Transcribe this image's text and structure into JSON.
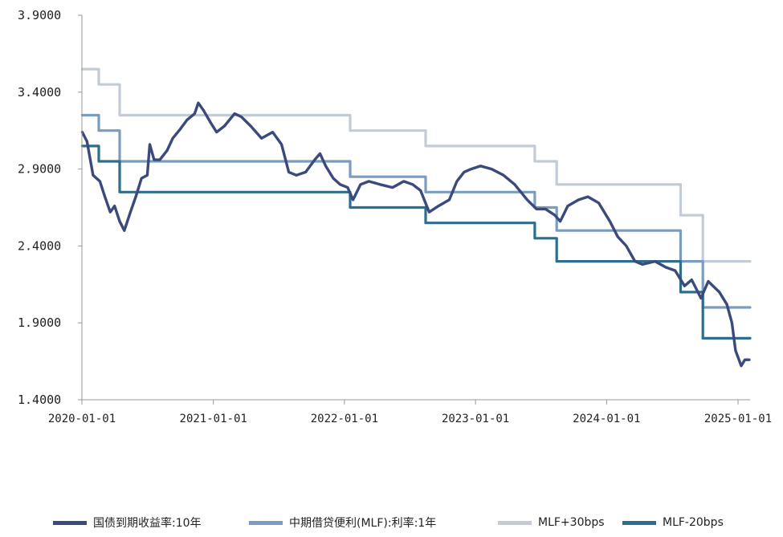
{
  "chart_data": {
    "type": "line",
    "title": "",
    "xlabel": "",
    "ylabel": "",
    "ylim": [
      1.4,
      3.9
    ],
    "yticks": [
      "3.9000",
      "3.4000",
      "2.9000",
      "2.4000",
      "1.9000",
      "1.4000"
    ],
    "xticks": [
      "2020-01-01",
      "2021-01-01",
      "2022-01-01",
      "2023-01-01",
      "2024-01-01",
      "2025-01-01"
    ],
    "grid": false,
    "legend_position": "bottom",
    "series": [
      {
        "name": "国债到期收益率:10年",
        "color": "#3b4a7c",
        "points": [
          [
            "2020-01-02",
            3.14
          ],
          [
            "2020-01-15",
            3.08
          ],
          [
            "2020-02-01",
            2.86
          ],
          [
            "2020-02-20",
            2.82
          ],
          [
            "2020-03-05",
            2.72
          ],
          [
            "2020-03-20",
            2.62
          ],
          [
            "2020-04-01",
            2.66
          ],
          [
            "2020-04-15",
            2.56
          ],
          [
            "2020-04-28",
            2.5
          ],
          [
            "2020-05-15",
            2.62
          ],
          [
            "2020-05-30",
            2.72
          ],
          [
            "2020-06-15",
            2.84
          ],
          [
            "2020-07-01",
            2.86
          ],
          [
            "2020-07-08",
            3.06
          ],
          [
            "2020-07-20",
            2.96
          ],
          [
            "2020-08-05",
            2.96
          ],
          [
            "2020-08-25",
            3.02
          ],
          [
            "2020-09-10",
            3.1
          ],
          [
            "2020-10-01",
            3.16
          ],
          [
            "2020-10-20",
            3.22
          ],
          [
            "2020-11-10",
            3.26
          ],
          [
            "2020-11-20",
            3.33
          ],
          [
            "2020-12-05",
            3.28
          ],
          [
            "2020-12-25",
            3.2
          ],
          [
            "2021-01-10",
            3.14
          ],
          [
            "2021-02-01",
            3.18
          ],
          [
            "2021-03-01",
            3.26
          ],
          [
            "2021-03-20",
            3.24
          ],
          [
            "2021-04-15",
            3.18
          ],
          [
            "2021-05-15",
            3.1
          ],
          [
            "2021-06-15",
            3.14
          ],
          [
            "2021-07-10",
            3.06
          ],
          [
            "2021-07-30",
            2.88
          ],
          [
            "2021-08-20",
            2.86
          ],
          [
            "2021-09-15",
            2.88
          ],
          [
            "2021-10-10",
            2.96
          ],
          [
            "2021-10-25",
            3.0
          ],
          [
            "2021-11-10",
            2.92
          ],
          [
            "2021-12-01",
            2.84
          ],
          [
            "2021-12-20",
            2.8
          ],
          [
            "2022-01-10",
            2.78
          ],
          [
            "2022-01-25",
            2.7
          ],
          [
            "2022-02-15",
            2.8
          ],
          [
            "2022-03-10",
            2.82
          ],
          [
            "2022-04-10",
            2.8
          ],
          [
            "2022-05-15",
            2.78
          ],
          [
            "2022-06-15",
            2.82
          ],
          [
            "2022-07-10",
            2.8
          ],
          [
            "2022-08-01",
            2.76
          ],
          [
            "2022-08-25",
            2.62
          ],
          [
            "2022-09-20",
            2.66
          ],
          [
            "2022-10-20",
            2.7
          ],
          [
            "2022-11-10",
            2.82
          ],
          [
            "2022-11-30",
            2.88
          ],
          [
            "2022-12-20",
            2.9
          ],
          [
            "2023-01-15",
            2.92
          ],
          [
            "2023-02-15",
            2.9
          ],
          [
            "2023-03-20",
            2.86
          ],
          [
            "2023-04-20",
            2.8
          ],
          [
            "2023-05-25",
            2.7
          ],
          [
            "2023-06-20",
            2.64
          ],
          [
            "2023-07-15",
            2.64
          ],
          [
            "2023-08-10",
            2.6
          ],
          [
            "2023-08-25",
            2.56
          ],
          [
            "2023-09-15",
            2.66
          ],
          [
            "2023-10-15",
            2.7
          ],
          [
            "2023-11-10",
            2.72
          ],
          [
            "2023-12-10",
            2.68
          ],
          [
            "2024-01-10",
            2.56
          ],
          [
            "2024-02-01",
            2.46
          ],
          [
            "2024-02-25",
            2.4
          ],
          [
            "2024-03-20",
            2.3
          ],
          [
            "2024-04-10",
            2.28
          ],
          [
            "2024-05-15",
            2.3
          ],
          [
            "2024-06-15",
            2.26
          ],
          [
            "2024-07-10",
            2.24
          ],
          [
            "2024-08-05",
            2.14
          ],
          [
            "2024-08-25",
            2.18
          ],
          [
            "2024-09-20",
            2.06
          ],
          [
            "2024-10-10",
            2.17
          ],
          [
            "2024-11-10",
            2.1
          ],
          [
            "2024-12-01",
            2.02
          ],
          [
            "2024-12-15",
            1.9
          ],
          [
            "2024-12-25",
            1.72
          ],
          [
            "2025-01-10",
            1.62
          ],
          [
            "2025-01-20",
            1.66
          ],
          [
            "2025-02-01",
            1.66
          ]
        ]
      },
      {
        "name": "中期借贷便利(MLF):利率:1年",
        "color": "#7a9cc0",
        "steps": [
          [
            "2020-01-02",
            3.25
          ],
          [
            "2020-02-17",
            3.15
          ],
          [
            "2020-04-15",
            2.95
          ],
          [
            "2022-01-17",
            2.85
          ],
          [
            "2022-08-15",
            2.75
          ],
          [
            "2023-06-15",
            2.65
          ],
          [
            "2023-08-15",
            2.5
          ],
          [
            "2024-07-25",
            2.3
          ],
          [
            "2024-09-25",
            2.0
          ],
          [
            "2025-02-01",
            2.0
          ]
        ]
      },
      {
        "name": "MLF+30bps",
        "color": "#c3ccd6",
        "steps": [
          [
            "2020-01-02",
            3.55
          ],
          [
            "2020-02-17",
            3.45
          ],
          [
            "2020-04-15",
            3.25
          ],
          [
            "2022-01-17",
            3.15
          ],
          [
            "2022-08-15",
            3.05
          ],
          [
            "2023-06-15",
            2.95
          ],
          [
            "2023-08-15",
            2.8
          ],
          [
            "2024-07-25",
            2.6
          ],
          [
            "2024-09-25",
            2.3
          ],
          [
            "2025-02-01",
            2.3
          ]
        ]
      },
      {
        "name": "MLF-20bps",
        "color": "#2e6e8c",
        "steps": [
          [
            "2020-01-02",
            3.05
          ],
          [
            "2020-02-17",
            2.95
          ],
          [
            "2020-04-15",
            2.75
          ],
          [
            "2022-01-17",
            2.65
          ],
          [
            "2022-08-15",
            2.55
          ],
          [
            "2023-06-15",
            2.45
          ],
          [
            "2023-08-15",
            2.3
          ],
          [
            "2024-07-25",
            2.1
          ],
          [
            "2024-09-25",
            1.8
          ],
          [
            "2025-02-01",
            1.8
          ]
        ]
      }
    ]
  }
}
